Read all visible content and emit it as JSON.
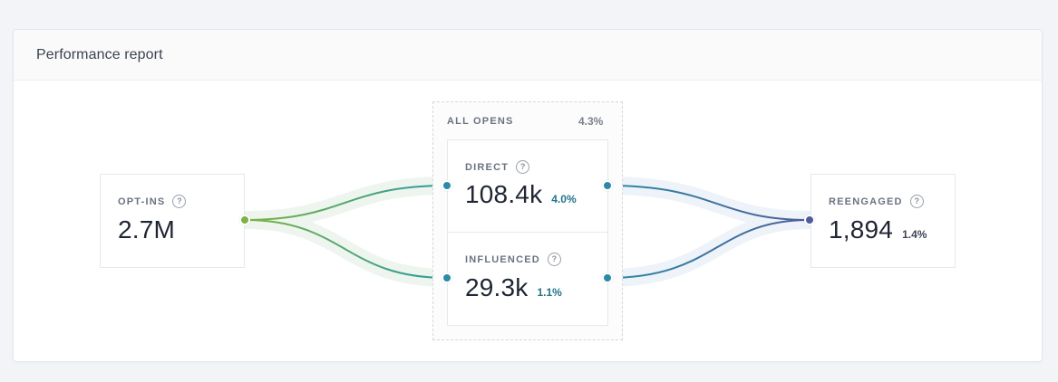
{
  "header": {
    "title": "Performance report"
  },
  "colors": {
    "green": "#7cb342",
    "teal": "#2b8aa6",
    "indigo": "#4f5d9a",
    "pct_teal": "#23748c",
    "pct_dark": "#3e4556"
  },
  "opt_ins": {
    "label": "OPT-INS",
    "value": "2.7M"
  },
  "all_opens": {
    "label": "ALL OPENS",
    "percent": "4.3%"
  },
  "direct": {
    "label": "DIRECT",
    "value": "108.4k",
    "percent": "4.0%"
  },
  "influenced": {
    "label": "INFLUENCED",
    "value": "29.3k",
    "percent": "1.1%"
  },
  "reengaged": {
    "label": "REENGAGED",
    "value": "1,894",
    "percent": "1.4%"
  },
  "help_glyph": "?"
}
